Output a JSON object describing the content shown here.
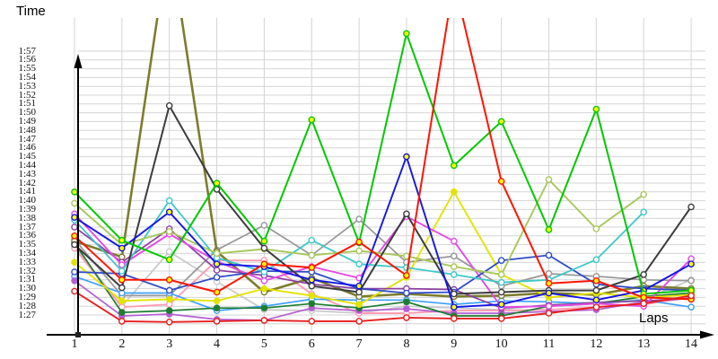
{
  "titles": {
    "y": "Time",
    "x": "Laps"
  },
  "y_axis": {
    "labels": [
      "1:57",
      "1:56",
      "1:55",
      "1:54",
      "1:53",
      "1:52",
      "1:51",
      "1:50",
      "1:49",
      "1:48",
      "1:47",
      "1:46",
      "1:45",
      "1:44",
      "1:43",
      "1:42",
      "1:41",
      "1:40",
      "1:39",
      "1:38",
      "1:37",
      "1:36",
      "1:35",
      "1:34",
      "1:33",
      "1:32",
      "1:31",
      "1:30",
      "1:29",
      "1:28",
      "1:27"
    ]
  },
  "x_axis": {
    "labels": [
      "1",
      "2",
      "3",
      "4",
      "5",
      "6",
      "7",
      "8",
      "9",
      "10",
      "11",
      "12",
      "13",
      "14"
    ]
  },
  "chart_data": {
    "type": "line",
    "title": "",
    "xlabel": "Laps",
    "ylabel": "Time",
    "x": [
      1,
      2,
      3,
      4,
      5,
      6,
      7,
      8,
      9,
      10,
      11,
      12,
      13,
      14
    ],
    "y_unit": "lap time in seconds (87 = 1:27, 117 = 1:57)",
    "ylim_labeled": [
      "1:27",
      "1:57"
    ],
    "grid": true,
    "legend_position": "none",
    "note": "values above 117 are clipped off the top of the plot; two series end at lap 13",
    "series": [
      {
        "name": "light-gray",
        "color": "#c9c9c9",
        "marker_fill": "white",
        "width": 1.7,
        "values": [
          94.8,
          88.0,
          94.2,
          90.8,
          87.6,
          87.5,
          87.2,
          88.0,
          87.8,
          87.6,
          88.2,
          88.5,
          88.8,
          91.0
        ]
      },
      {
        "name": "gray",
        "color": "#979797",
        "marker_fill": "white",
        "width": 1.7,
        "values": [
          95.6,
          89.2,
          89.2,
          94.4,
          97.2,
          93.8,
          97.9,
          93.0,
          93.7,
          90.3,
          91.7,
          91.4,
          91.0,
          90.9
        ]
      },
      {
        "name": "pink",
        "color": "#ff9db4",
        "marker_fill": "white",
        "width": 1.9,
        "values": [
          94.6,
          87.9,
          88.2,
          93.2,
          93.2,
          89.4,
          87.2,
          87.2,
          87.5,
          87.5,
          87.6,
          87.9,
          88.2,
          89.0
        ]
      },
      {
        "name": "light-blue",
        "color": "#3fa0ff",
        "marker_fill": "white",
        "width": 1.7,
        "values": [
          91.4,
          89.5,
          89.5,
          87.5,
          88.0,
          88.8,
          88.7,
          88.7,
          88.2,
          88.6,
          88.5,
          88.3,
          88.7,
          87.9
        ]
      },
      {
        "name": "violet",
        "color": "#b45fd2",
        "marker_fill": "self",
        "width": 1.7,
        "values": [
          90.9,
          86.9,
          87.1,
          86.5,
          86.4,
          87.8,
          87.5,
          87.7,
          87.2,
          87.2,
          87.4,
          87.6,
          88.5,
          88.9
        ]
      },
      {
        "name": "dark-green",
        "color": "#1e7d32",
        "marker_fill": "self",
        "width": 1.7,
        "values": [
          95.2,
          87.3,
          87.5,
          87.8,
          87.8,
          88.3,
          87.8,
          88.5,
          86.9,
          86.9,
          88.0,
          88.3,
          89.1,
          89.5
        ]
      },
      {
        "name": "olive",
        "color": "#7d7d2e",
        "marker_fill": "white",
        "width": 2.6,
        "values": [
          95.4,
          93.6,
          130.0,
          94.2,
          89.6,
          91.2,
          89.1,
          89.4,
          89.1,
          89.2,
          89.5,
          89.3,
          90.3,
          90.0
        ]
      },
      {
        "name": "yellow",
        "color": "#e3e300",
        "marker_fill": "self",
        "width": 1.9,
        "values": [
          93.0,
          88.6,
          88.8,
          88.6,
          90.0,
          89.2,
          88.2,
          91.3,
          101.0,
          91.6,
          89.0,
          89.5,
          89.0,
          89.3
        ]
      },
      {
        "name": "purple",
        "color": "#8c3fa0",
        "marker_fill": "white",
        "width": 1.7,
        "values": [
          97.0,
          93.0,
          96.8,
          92.1,
          91.5,
          90.5,
          90.0,
          90.0,
          89.9,
          87.8,
          88.1,
          88.4,
          88.6,
          88.9
        ]
      },
      {
        "name": "magenta",
        "color": "#e34ae3",
        "marker_fill": "white",
        "width": 1.9,
        "values": [
          98.5,
          92.7,
          96.2,
          93.1,
          90.9,
          92.5,
          91.2,
          98.2,
          95.4,
          87.9,
          88.0,
          88.3,
          88.0,
          93.4
        ]
      },
      {
        "name": "navy",
        "color": "#2e4bc8",
        "marker_fill": "white",
        "width": 1.8,
        "values": [
          91.9,
          91.7,
          89.8,
          91.3,
          92.0,
          91.9,
          90.0,
          89.5,
          89.6,
          93.2,
          93.8,
          90.5,
          90.0,
          89.8
        ]
      },
      {
        "name": "cyan",
        "color": "#3cc8c8",
        "marker_fill": "white",
        "width": 1.8,
        "values": [
          97.8,
          92.0,
          100.0,
          93.5,
          91.9,
          95.5,
          92.8,
          92.4,
          91.6,
          90.7,
          91.0,
          93.3,
          98.7
        ]
      },
      {
        "name": "light-green",
        "color": "#a8c85a",
        "marker_fill": "white",
        "width": 1.9,
        "values": [
          99.7,
          95.0,
          96.5,
          94.0,
          94.5,
          93.8,
          94.3,
          93.7,
          92.5,
          91.6,
          102.4,
          96.8,
          100.7
        ]
      },
      {
        "name": "dark-gray",
        "color": "#3c3c3c",
        "marker_fill": "white",
        "width": 2.0,
        "values": [
          95.0,
          90.1,
          110.8,
          101.3,
          94.6,
          90.3,
          89.6,
          98.5,
          89.4,
          89.6,
          89.8,
          89.8,
          91.6,
          99.3
        ]
      },
      {
        "name": "blue",
        "color": "#1414e6",
        "marker_fill": "yellow",
        "width": 1.9,
        "values": [
          98.1,
          94.6,
          98.7,
          92.8,
          92.5,
          91.0,
          90.3,
          105.0,
          87.9,
          88.2,
          89.5,
          88.7,
          89.8,
          92.8
        ]
      },
      {
        "name": "green",
        "color": "#00c800",
        "marker_fill": "yellow",
        "width": 2.0,
        "values": [
          101.0,
          95.5,
          93.3,
          102.0,
          95.4,
          109.2,
          95.2,
          119.0,
          104.0,
          109.0,
          96.7,
          110.4,
          89.4,
          89.8
        ]
      },
      {
        "name": "scarlet",
        "color": "#ff1400",
        "marker_fill": "yellow",
        "width": 2.0,
        "values": [
          96.0,
          91.0,
          91.0,
          89.6,
          92.8,
          92.4,
          95.3,
          91.5,
          125.0,
          102.2,
          90.6,
          90.9,
          89.0,
          88.8
        ]
      },
      {
        "name": "red",
        "color": "#e61e1e",
        "marker_fill": "white",
        "width": 1.9,
        "values": [
          89.7,
          86.3,
          86.2,
          86.3,
          86.4,
          86.3,
          86.3,
          86.7,
          86.6,
          86.6,
          87.2,
          87.9,
          88.3,
          89.2
        ]
      }
    ]
  }
}
